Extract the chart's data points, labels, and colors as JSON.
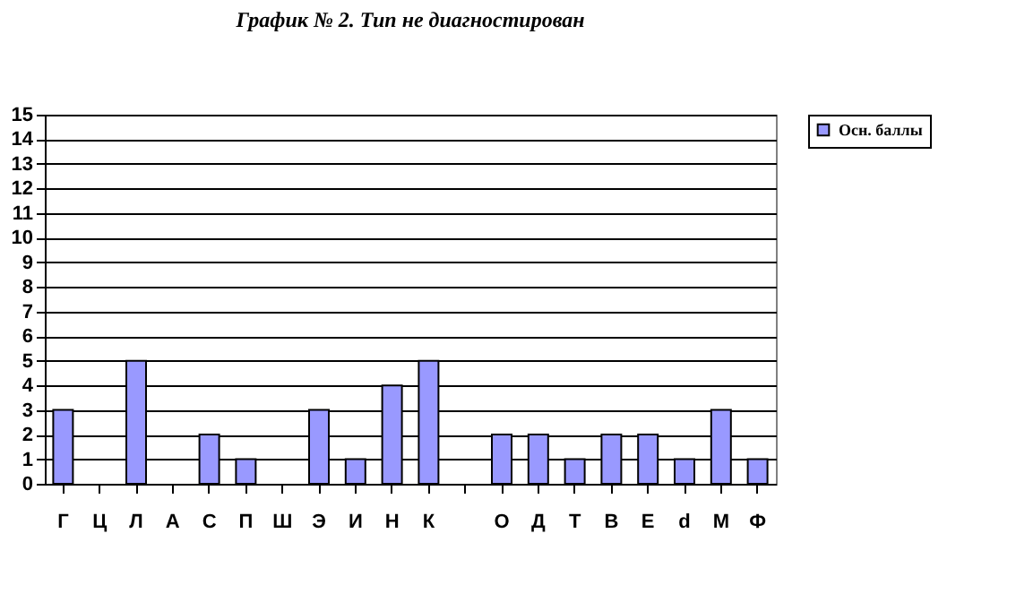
{
  "chart_data": {
    "type": "bar",
    "title": "График № 2. Тип не диагностирован",
    "categories": [
      "Г",
      "Ц",
      "Л",
      "А",
      "С",
      "П",
      "Ш",
      "Э",
      "И",
      "Н",
      "К",
      null,
      "О",
      "Д",
      "Т",
      "В",
      "Е",
      "d",
      "М",
      "Ф"
    ],
    "series": [
      {
        "name": "Осн. баллы",
        "color": "#9999ff",
        "values": [
          3,
          0,
          5,
          0,
          2,
          1,
          0,
          3,
          1,
          4,
          5,
          null,
          2,
          2,
          1,
          2,
          2,
          1,
          3,
          1
        ]
      }
    ],
    "ylim": [
      0,
      15
    ],
    "yticks": [
      0,
      1,
      2,
      3,
      4,
      5,
      6,
      7,
      8,
      9,
      10,
      11,
      12,
      13,
      14,
      15
    ],
    "grid": "y",
    "legend": "right"
  }
}
